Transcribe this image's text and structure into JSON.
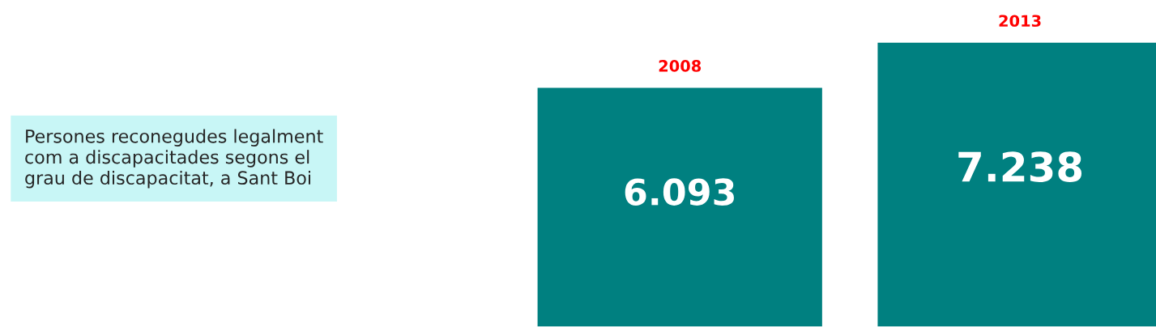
{
  "chart_data": {
    "type": "bar",
    "title": "Persones reconegudes legalment\ncom a discapacitades segons el\ngrau de discapacitat, a Sant Boi",
    "categories": [
      "2008",
      "2013"
    ],
    "values": [
      6093,
      7238
    ],
    "value_labels": [
      "6.093",
      "7.238"
    ],
    "color": "#008080",
    "legend": false
  }
}
